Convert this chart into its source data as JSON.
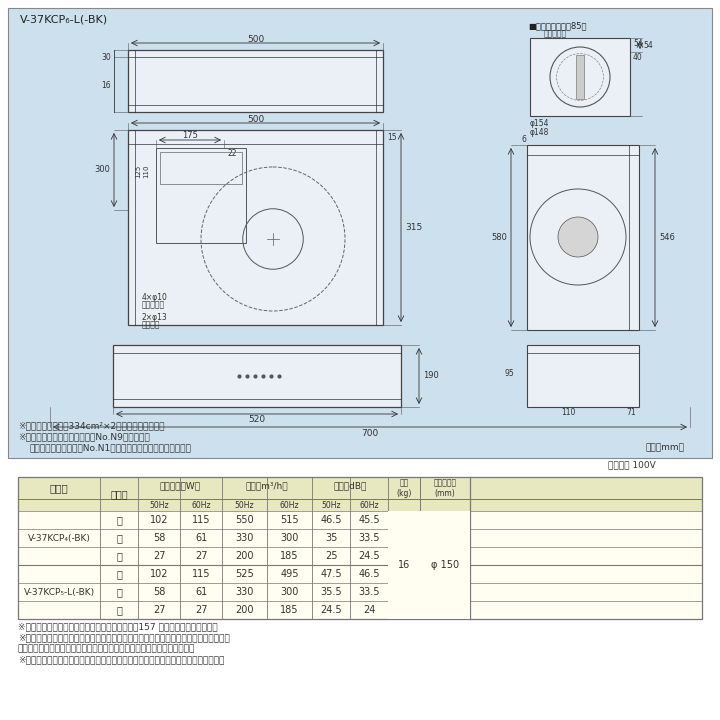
{
  "bg_color": "#cde0ee",
  "white": "#ffffff",
  "light_yellow": "#fdfde8",
  "border_color": "#999999",
  "text_color": "#333333",
  "title_model": "V-37KCP₆-L(-BK)",
  "duct_label": "■ダクト接続口（85）",
  "duct_sub": "（付属品）",
  "unit_note": "（単位mm）",
  "note1": "※グリル開口面積は334cm²×2枚（フィルター鄱）",
  "note2": "※色調は（ホワイト）マンセルNo.N9（近似色）",
  "note3": "（ブラック）マンセルNo.N1（近似色）（但し半ツヤ相当品）",
  "voltage_note": "電源電圧 100V",
  "table_header1": "形　名",
  "table_header2": "ノッチ",
  "table_h_power": "消費電力（W）",
  "table_h_airflow": "風量（m³/h）",
  "table_h_noise": "騒音（dB）",
  "table_h_weight": "質量\n(kg)",
  "table_h_pipe": "接続パイプ\n(mm)",
  "freq_50": "50Hz",
  "freq_60": "60Hz",
  "model1": "V-37KCP₄(-BK)",
  "model2": "V-37KCP₅-L(-BK)",
  "notch_strong": "強",
  "notch_mid": "中",
  "notch_weak": "弱",
  "data_m1": [
    [
      "102",
      "115",
      "550",
      "515",
      "46.5",
      "45.5"
    ],
    [
      "58",
      "61",
      "330",
      "300",
      "35",
      "33.5"
    ],
    [
      "27",
      "27",
      "200",
      "185",
      "25",
      "24.5"
    ]
  ],
  "data_m2": [
    [
      "102",
      "115",
      "525",
      "495",
      "47.5",
      "46.5"
    ],
    [
      "58",
      "61",
      "330",
      "300",
      "35.5",
      "33.5"
    ],
    [
      "27",
      "27",
      "200",
      "185",
      "24.5",
      "24"
    ]
  ],
  "weight": "16",
  "pipe": "φ 150",
  "footer1": "※電動給気シャッターとの結線方法については、157 ページをご覧ください。",
  "footer2": "※電動給気シャッター連動出力コードの先端には絶縁用端子が付いています。使用の際",
  "footer3": "　はコードを途中から切断して電動給気シャッターに接続してください。",
  "footer4": "※レンジフードファンの設置にあたっては火災予防条例をはじめ法規制があります。"
}
